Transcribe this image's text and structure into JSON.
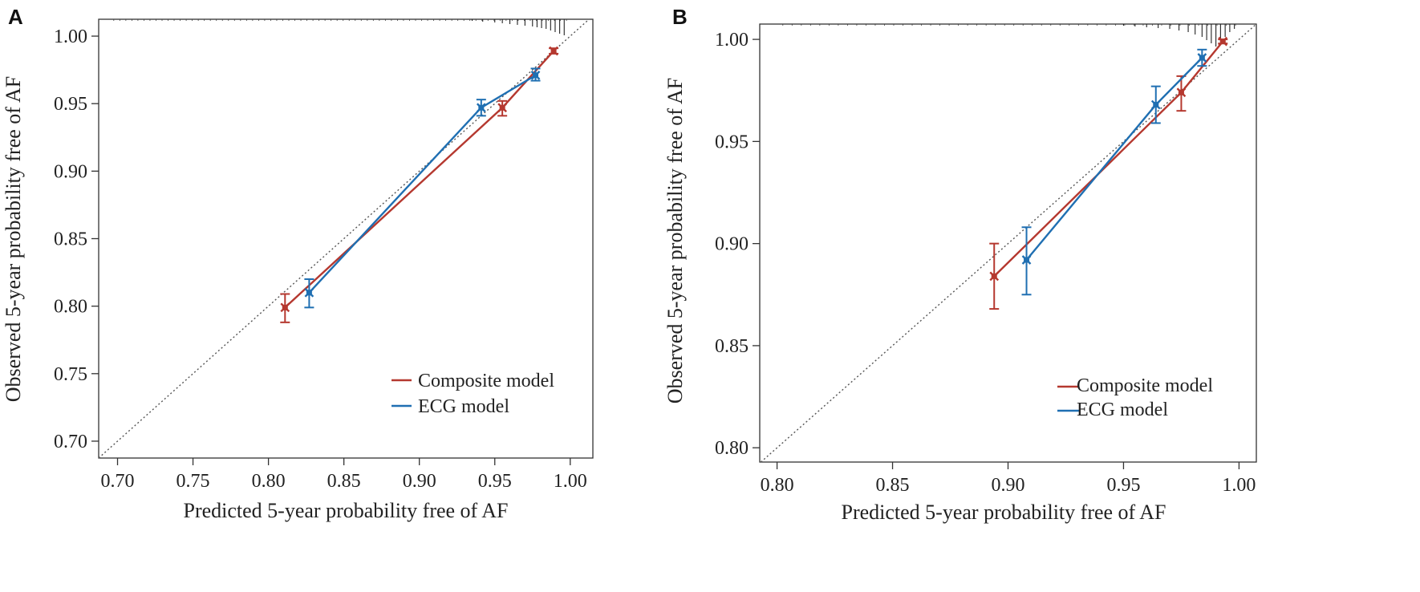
{
  "chart_data": [
    {
      "type": "line",
      "panel": "A",
      "xlabel": "Predicted 5-year probability free of AF",
      "ylabel": "Observed 5-year probability free of AF",
      "xlim": [
        0.6875,
        1.015
      ],
      "ylim": [
        0.6875,
        1.0125
      ],
      "xticks": [
        "0.70",
        "0.75",
        "0.80",
        "0.85",
        "0.90",
        "0.95",
        "1.00"
      ],
      "yticks": [
        "0.70",
        "0.75",
        "0.80",
        "0.85",
        "0.90",
        "0.95",
        "1.00"
      ],
      "reference_line": "y = x (dotted)",
      "legend": {
        "placement": "bottom-right",
        "entries": [
          "Composite model",
          "ECG model"
        ]
      },
      "series": [
        {
          "name": "Composite model",
          "color": "#b5382f",
          "x": [
            0.811,
            0.955,
            0.989
          ],
          "y": [
            0.799,
            0.947,
            0.989
          ],
          "y_low": [
            0.788,
            0.941,
            0.987
          ],
          "y_high": [
            0.809,
            0.952,
            0.991
          ]
        },
        {
          "name": "ECG model",
          "color": "#1f6fb2",
          "x": [
            0.827,
            0.941,
            0.977
          ],
          "y": [
            0.81,
            0.947,
            0.971
          ],
          "y_low": [
            0.799,
            0.941,
            0.967
          ],
          "y_high": [
            0.82,
            0.953,
            0.976
          ]
        }
      ],
      "rug_x": [
        0.935,
        0.942,
        0.95,
        0.955,
        0.96,
        0.965,
        0.97,
        0.975,
        0.978,
        0.981,
        0.984,
        0.987,
        0.99,
        0.993,
        0.996
      ],
      "rug_len": [
        2,
        3,
        4,
        5,
        6,
        7,
        8,
        9,
        10,
        11,
        12,
        14,
        16,
        18,
        20
      ]
    },
    {
      "type": "line",
      "panel": "B",
      "xlabel": "Predicted 5-year probability free of AF",
      "ylabel": "Observed 5-year probability free of AF",
      "xlim": [
        0.7925,
        1.0075
      ],
      "ylim": [
        0.793,
        1.0075
      ],
      "xticks": [
        "0.80",
        "0.85",
        "0.90",
        "0.95",
        "1.00"
      ],
      "yticks": [
        "0.80",
        "0.85",
        "0.90",
        "0.95",
        "1.00"
      ],
      "reference_line": "y = x (dotted)",
      "legend": {
        "placement": "bottom-right",
        "entries": [
          "Composite model",
          "ECG model"
        ]
      },
      "series": [
        {
          "name": "Composite model",
          "color": "#b5382f",
          "x": [
            0.894,
            0.975,
            0.993
          ],
          "y": [
            0.884,
            0.974,
            0.999
          ],
          "y_low": [
            0.868,
            0.965,
            0.998
          ],
          "y_high": [
            0.9,
            0.982,
            1.0
          ]
        },
        {
          "name": "ECG model",
          "color": "#1f6fb2",
          "x": [
            0.908,
            0.964,
            0.984
          ],
          "y": [
            0.892,
            0.968,
            0.991
          ],
          "y_low": [
            0.875,
            0.959,
            0.987
          ],
          "y_high": [
            0.908,
            0.977,
            0.995
          ]
        }
      ],
      "rug_x": [
        0.95,
        0.955,
        0.96,
        0.965,
        0.97,
        0.974,
        0.978,
        0.981,
        0.984,
        0.986,
        0.988,
        0.99,
        0.992,
        0.994,
        0.996,
        0.998
      ],
      "rug_len": [
        2,
        3,
        4,
        5,
        6,
        8,
        10,
        13,
        16,
        20,
        24,
        28,
        22,
        16,
        10,
        6
      ]
    }
  ]
}
